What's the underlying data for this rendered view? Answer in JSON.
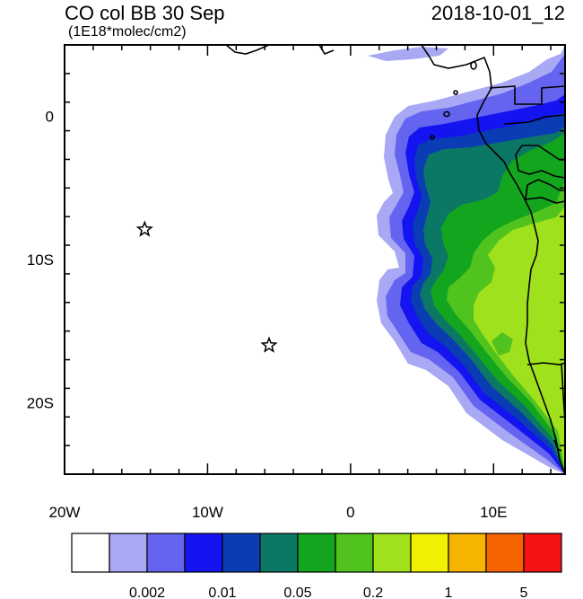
{
  "title": "CO col BB 30 Sep",
  "units": "(1E18*molec/cm2)",
  "timestamp": "2018-10-01_12",
  "map": {
    "lon_range": [
      -20,
      15
    ],
    "lat_range": [
      -25,
      5
    ],
    "x_ticks": [
      {
        "value": -20,
        "label": "20W"
      },
      {
        "value": -10,
        "label": "10W"
      },
      {
        "value": 0,
        "label": "0"
      },
      {
        "value": 10,
        "label": "10E"
      }
    ],
    "y_ticks": [
      {
        "value": 0,
        "label": "0"
      },
      {
        "value": -10,
        "label": "10S"
      },
      {
        "value": -20,
        "label": "20S"
      }
    ],
    "markers": [
      {
        "lon": -14.4,
        "lat": -7.9,
        "symbol": "star"
      },
      {
        "lon": -5.7,
        "lat": -16.0,
        "symbol": "star"
      }
    ]
  },
  "colorbar": {
    "colors": [
      "#ffffff",
      "#a8a8f5",
      "#6464f0",
      "#1414f0",
      "#0a3cb4",
      "#0a7864",
      "#14a51e",
      "#50c31e",
      "#a0e11e",
      "#f0f000",
      "#f5b400",
      "#f56400",
      "#f51414"
    ],
    "labels": [
      {
        "after_index": 1,
        "text": "0.002"
      },
      {
        "after_index": 3,
        "text": "0.01"
      },
      {
        "after_index": 5,
        "text": "0.05"
      },
      {
        "after_index": 7,
        "text": "0.2"
      },
      {
        "after_index": 9,
        "text": "1"
      },
      {
        "after_index": 11,
        "text": "5"
      }
    ]
  }
}
